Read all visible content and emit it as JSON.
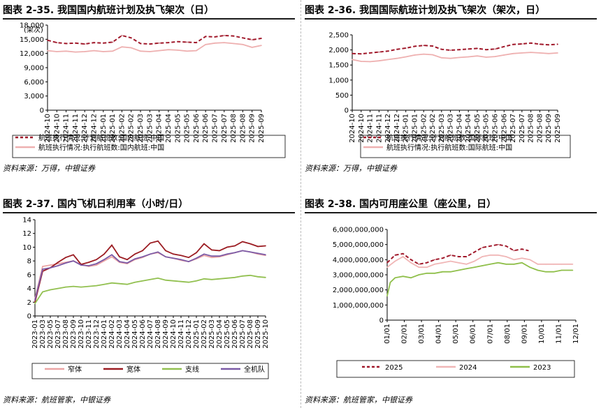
{
  "panels": [
    {
      "title": "图表 2-35. 我国国内航班计划及执飞架次（日）",
      "source": "资料来源：万得，中银证券"
    },
    {
      "title": "图表 2-36. 我国国际航班计划及执飞架次（架次，日）",
      "source": "资料来源：万得，中银证券"
    },
    {
      "title": "图表 2-37. 国内飞机日利用率（小时/日）",
      "source": "资料来源：航班管家，中银证券"
    },
    {
      "title": "图表 2-38. 国内可用座公里（座公里，日）",
      "source": "资料来源：航班管家，中银证券"
    }
  ],
  "chart_data": [
    {
      "type": "line",
      "unit_label": "(架次)",
      "ylim": [
        0,
        18000
      ],
      "yticks": [
        "0",
        "3,000",
        "6,000",
        "9,000",
        "12,000",
        "15,000",
        "18,000"
      ],
      "x_ticks": [
        "2024-10",
        "2024-10",
        "2024-11",
        "2024-11",
        "2024-12",
        "2024-12",
        "2025-01",
        "2025-01",
        "2025-02",
        "2025-02",
        "2025-03",
        "2025-03",
        "2025-04",
        "2025-04",
        "2025-05",
        "2025-05",
        "2025-06",
        "2025-06",
        "2025-07",
        "2025-07",
        "2025-08",
        "2025-08",
        "2025-09",
        "2025-09"
      ],
      "series": [
        {
          "name": "航班执行情况:计划航班数:国内航班:中国",
          "color": "#a0182a",
          "dash": true,
          "values": [
            14800,
            14300,
            14100,
            14200,
            14000,
            14300,
            14200,
            14400,
            15800,
            15300,
            14100,
            14000,
            14200,
            14300,
            14500,
            14400,
            14300,
            15600,
            15500,
            15800,
            15700,
            15300,
            14900,
            15200
          ]
        },
        {
          "name": "航班执行情况:执行航班数:国内航班:中国",
          "color": "#eeb0b0",
          "dash": false,
          "values": [
            12600,
            12400,
            12500,
            12300,
            12400,
            12600,
            12400,
            12500,
            13400,
            13200,
            12500,
            12400,
            12600,
            12800,
            12700,
            12500,
            12600,
            13900,
            14200,
            14300,
            14100,
            13900,
            13300,
            13700
          ]
        }
      ]
    },
    {
      "type": "line",
      "ylim": [
        0,
        2500
      ],
      "yticks": [
        "0",
        "500",
        "1,000",
        "1,500",
        "2,000",
        "2,500"
      ],
      "x_ticks": [
        "2024-10",
        "2024-10",
        "2024-11",
        "2024-11",
        "2024-12",
        "2024-12",
        "2025-01",
        "2025-01",
        "2025-02",
        "2025-02",
        "2025-03",
        "2025-03",
        "2025-04",
        "2025-04",
        "2025-05",
        "2025-05",
        "2025-06",
        "2025-06",
        "2025-07",
        "2025-07",
        "2025-08",
        "2025-08",
        "2025-09",
        "2025-09"
      ],
      "series": [
        {
          "name": "航班执行情况:计划航班数:国际航班:中国",
          "color": "#a0182a",
          "dash": true,
          "values": [
            1880,
            1870,
            1900,
            1930,
            1960,
            2020,
            2060,
            2120,
            2150,
            2130,
            2020,
            1990,
            2010,
            2030,
            2050,
            2010,
            2030,
            2110,
            2180,
            2200,
            2230,
            2190,
            2170,
            2190
          ]
        },
        {
          "name": "航班执行情况:执行航班数:国际航班:中国",
          "color": "#eeb0b0",
          "dash": false,
          "values": [
            1680,
            1620,
            1610,
            1640,
            1680,
            1720,
            1770,
            1830,
            1860,
            1840,
            1740,
            1720,
            1750,
            1770,
            1800,
            1760,
            1780,
            1830,
            1880,
            1900,
            1920,
            1900,
            1880,
            1900
          ]
        }
      ]
    },
    {
      "type": "line",
      "ylim": [
        0,
        14
      ],
      "yticks": [
        "0",
        "2",
        "4",
        "6",
        "8",
        "10",
        "12",
        "14"
      ],
      "x_ticks": [
        "2023-01",
        "2023-03",
        "2023-05",
        "2023-07",
        "2023-08",
        "2023-09",
        "2023-10",
        "2023-11",
        "2023-12",
        "2024-01",
        "2024-02",
        "2024-03",
        "2024-04",
        "2024-05",
        "2024-06",
        "2024-07",
        "2024-08",
        "2024-09",
        "2024-10",
        "2024-11",
        "2024-12",
        "2025-01",
        "2025-02",
        "2025-03",
        "2025-04",
        "2025-05",
        "2025-06",
        "2025-07",
        "2025-08",
        "2025-09",
        "2025-10"
      ],
      "series": [
        {
          "name": "窄体",
          "color": "#eba5a5",
          "values": [
            2.5,
            7.2,
            7.4,
            7.6,
            7.8,
            8.0,
            7.5,
            7.2,
            7.4,
            8.0,
            8.6,
            7.8,
            7.6,
            8.2,
            8.5,
            9.0,
            9.2,
            8.6,
            8.4,
            8.1,
            7.9,
            8.3,
            8.8,
            8.5,
            8.6,
            8.9,
            9.2,
            9.5,
            9.3,
            9.0,
            8.8
          ]
        },
        {
          "name": "宽体",
          "color": "#9b1c22",
          "values": [
            2.0,
            6.5,
            7.0,
            7.8,
            8.5,
            8.9,
            7.5,
            7.8,
            8.2,
            9.0,
            10.3,
            8.6,
            8.2,
            9.0,
            9.5,
            10.6,
            10.9,
            9.5,
            9.0,
            8.8,
            8.5,
            9.2,
            10.5,
            9.6,
            9.5,
            10.0,
            10.2,
            10.8,
            10.5,
            10.1,
            10.2
          ]
        },
        {
          "name": "支线",
          "color": "#92c050",
          "values": [
            1.8,
            3.5,
            3.8,
            4.0,
            4.2,
            4.3,
            4.2,
            4.3,
            4.4,
            4.6,
            4.8,
            4.7,
            4.6,
            4.9,
            5.1,
            5.3,
            5.5,
            5.2,
            5.1,
            5.0,
            4.9,
            5.1,
            5.4,
            5.3,
            5.4,
            5.5,
            5.6,
            5.8,
            5.9,
            5.7,
            5.6
          ]
        },
        {
          "name": "全机队",
          "color": "#7b5aa6",
          "values": [
            2.3,
            6.8,
            7.0,
            7.3,
            7.7,
            8.0,
            7.4,
            7.3,
            7.6,
            8.2,
            8.9,
            7.9,
            7.7,
            8.3,
            8.6,
            9.0,
            9.3,
            8.6,
            8.4,
            8.2,
            7.9,
            8.4,
            9.0,
            8.7,
            8.7,
            9.0,
            9.2,
            9.5,
            9.3,
            9.1,
            8.9
          ]
        }
      ]
    },
    {
      "type": "line",
      "ylim": [
        0,
        6000000000
      ],
      "yticks": [
        "0",
        "1,000,000,000",
        "2,000,000,000",
        "3,000,000,000",
        "4,000,000,000",
        "5,000,000,000",
        "6,000,000,000"
      ],
      "x_ticks": [
        "01/01",
        "02/01",
        "03/01",
        "04/01",
        "05/01",
        "06/01",
        "07/01",
        "08/01",
        "09/01",
        "10/01",
        "11/01",
        "12/01"
      ],
      "series": [
        {
          "name": "2025",
          "color": "#a0182a",
          "dash": true,
          "x": [
            1.0,
            1.5,
            2.0,
            2.5,
            3.0,
            3.5,
            4.0,
            4.5,
            5.0,
            5.5,
            6.0,
            6.5,
            7.0,
            7.5,
            8.0,
            8.5,
            9.0,
            9.5,
            9.9
          ],
          "values": [
            3800000000,
            4300000000,
            4400000000,
            4000000000,
            3700000000,
            3800000000,
            4000000000,
            4100000000,
            4300000000,
            4200000000,
            4200000000,
            4500000000,
            4800000000,
            4900000000,
            5000000000,
            4900000000,
            4600000000,
            4700000000,
            4600000000
          ]
        },
        {
          "name": "2024",
          "color": "#f0b6b6",
          "dash": false,
          "x": [
            1.0,
            1.5,
            2.0,
            2.5,
            3.0,
            3.5,
            4.0,
            4.5,
            5.0,
            5.5,
            6.0,
            6.5,
            7.0,
            7.5,
            8.0,
            8.5,
            9.0,
            9.5,
            10.0,
            10.5,
            11.0,
            11.5,
            12.0,
            12.7
          ],
          "values": [
            3500000000,
            3900000000,
            4200000000,
            3800000000,
            3500000000,
            3500000000,
            3700000000,
            3800000000,
            3900000000,
            3800000000,
            3700000000,
            3900000000,
            4200000000,
            4300000000,
            4300000000,
            4200000000,
            4000000000,
            4100000000,
            4000000000,
            3700000000,
            3700000000,
            3700000000,
            3700000000,
            3700000000
          ]
        },
        {
          "name": "2023",
          "color": "#8fbf4a",
          "dash": false,
          "x": [
            1.0,
            1.2,
            1.5,
            2.0,
            2.5,
            3.0,
            3.5,
            4.0,
            4.5,
            5.0,
            5.5,
            6.0,
            6.5,
            7.0,
            7.5,
            8.0,
            8.5,
            9.0,
            9.5,
            10.0,
            10.5,
            11.0,
            11.5,
            12.0,
            12.7
          ],
          "values": [
            1600000000,
            2500000000,
            2800000000,
            2900000000,
            2800000000,
            3000000000,
            3100000000,
            3100000000,
            3200000000,
            3200000000,
            3300000000,
            3400000000,
            3500000000,
            3600000000,
            3700000000,
            3800000000,
            3700000000,
            3700000000,
            3800000000,
            3500000000,
            3300000000,
            3200000000,
            3200000000,
            3300000000,
            3300000000
          ]
        }
      ]
    }
  ]
}
